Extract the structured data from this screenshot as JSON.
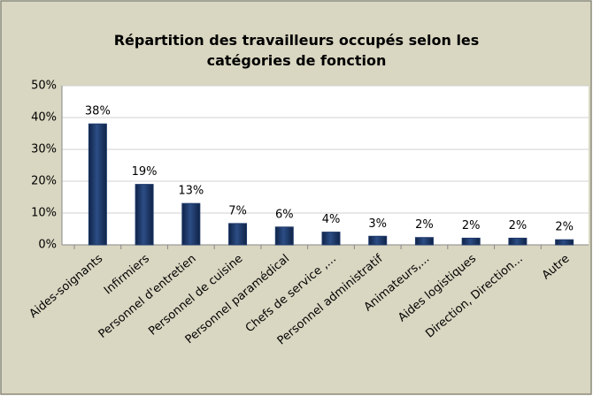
{
  "chart_data": {
    "type": "bar",
    "title": "Répartition des travailleurs occupés selon les catégories de fonction",
    "categories": [
      "Aides-soignants",
      "Infirmiers",
      "Personnel d'entretien",
      "Personnel de cuisine",
      "Personnel paramédical",
      "Chefs de service ,...",
      "Personnel administratif",
      "Animateurs,...",
      "Aides logistiques",
      "Direction, Direction...",
      "Autre"
    ],
    "values": [
      38,
      19,
      13,
      6.7,
      5.6,
      4,
      2.7,
      2.3,
      2.1,
      2.1,
      1.6
    ],
    "value_labels": [
      "38%",
      "19%",
      "13%",
      "7%",
      "6%",
      "4%",
      "3%",
      "2%",
      "2%",
      "2%",
      "2%"
    ],
    "color": "#1f3a6b",
    "ylim": [
      0,
      50
    ],
    "yticks": [
      {
        "value": 0,
        "label": "0%"
      },
      {
        "value": 10,
        "label": "10%"
      },
      {
        "value": 20,
        "label": "20%"
      },
      {
        "value": 30,
        "label": "30%"
      },
      {
        "value": 40,
        "label": "40%"
      },
      {
        "value": 50,
        "label": "50%"
      }
    ],
    "grid": true
  }
}
